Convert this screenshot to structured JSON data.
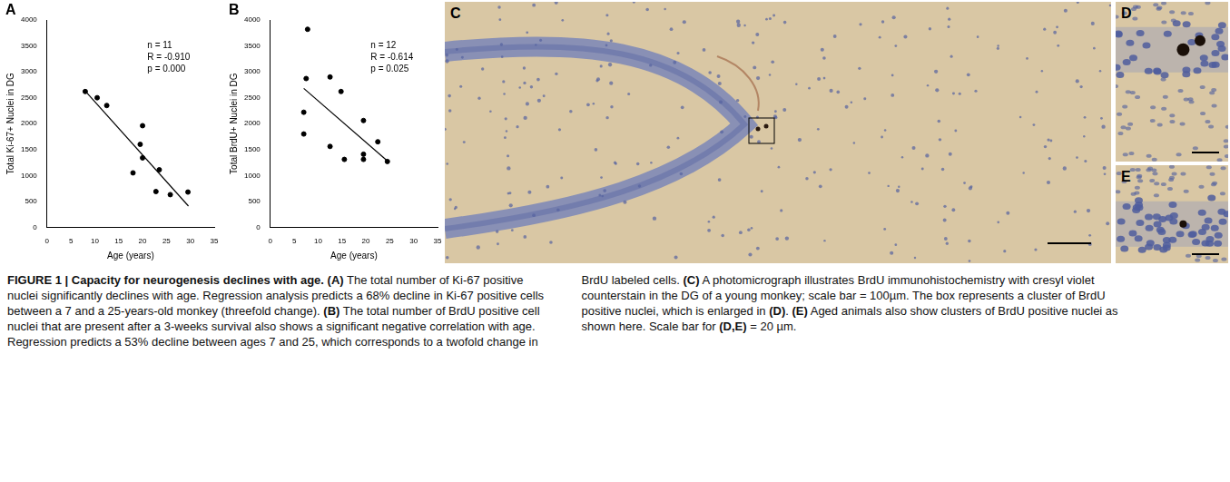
{
  "chart_data": [
    {
      "type": "scatter",
      "panel": "A",
      "marker": "circle",
      "grid": false,
      "x_label": "Age (years)",
      "y_label": "Total Ki-67+ Nuclei in DG",
      "annotations": [
        "n = 11",
        "R = -0.910",
        "p = 0.000"
      ],
      "xlim": [
        0,
        35
      ],
      "xticks": [
        0,
        5,
        10,
        15,
        20,
        25,
        30,
        35
      ],
      "ylim": [
        0,
        4000
      ],
      "yticks": [
        0,
        500,
        1000,
        1500,
        2000,
        2500,
        3000,
        3500,
        4000
      ],
      "points": {
        "x": [
          8,
          10.5,
          12.5,
          18,
          19.5,
          20,
          20,
          22.8,
          23.5,
          25.8,
          29.5
        ],
        "y": [
          2620,
          2500,
          2350,
          1050,
          1600,
          1960,
          1340,
          690,
          1110,
          630,
          680
        ]
      },
      "fit_line": {
        "x": [
          7.8,
          29.6
        ],
        "y": [
          2650,
          410
        ]
      }
    },
    {
      "type": "scatter",
      "panel": "B",
      "marker": "circle",
      "grid": false,
      "x_label": "Age (years)",
      "y_label": "Total BrdU+ Nuclei in DG",
      "annotations": [
        "n = 12",
        "R = -0.614",
        "p = 0.025"
      ],
      "xlim": [
        0,
        35
      ],
      "xticks": [
        0,
        5,
        10,
        15,
        20,
        25,
        30,
        35
      ],
      "ylim": [
        0,
        4000
      ],
      "yticks": [
        0,
        500,
        1000,
        1500,
        2000,
        2500,
        3000,
        3500,
        4000
      ],
      "points": {
        "x": [
          7,
          7,
          7.5,
          7.8,
          12.5,
          12.5,
          14.8,
          15.5,
          19.5,
          19.5,
          19.5,
          22.5,
          24.5
        ],
        "y": [
          2220,
          1800,
          2870,
          3820,
          2900,
          1560,
          2620,
          1310,
          2060,
          1410,
          1310,
          1650,
          1270
        ]
      },
      "fit_line": {
        "x": [
          7,
          24.5
        ],
        "y": [
          2680,
          1280
        ]
      }
    }
  ],
  "images": [
    {
      "panel": "C"
    },
    {
      "panel": "D"
    },
    {
      "panel": "E"
    }
  ],
  "caption": [
    {
      "text": "FIGURE 1 | Capacity for neurogenesis declines with age.",
      "bold": true
    },
    {
      "text": " (A)",
      "bold": true
    },
    {
      "text": " The total number of Ki-67 positive nuclei significantly declines with age. Regression analysis predicts a 68% decline in Ki-67 positive cells between a 7 and a 25-years-old monkey (threefold change).",
      "bold": false
    },
    {
      "text": " (B)",
      "bold": true
    },
    {
      "text": " The total number of BrdU positive cell nuclei that are present after a 3-weeks survival also shows a significant negative correlation with age. Regression predicts a 53% decline between ages 7 and 25, which corresponds to a twofold change in BrdU labeled cells.",
      "bold": false
    },
    {
      "text": " (C)",
      "bold": true
    },
    {
      "text": " A photomicrograph illustrates BrdU immunohistochemistry with cresyl violet counterstain in the DG of a young monkey; scale bar = 100µm. The box represents a cluster of BrdU positive nuclei, which is enlarged in",
      "bold": false
    },
    {
      "text": " (D)",
      "bold": true
    },
    {
      "text": ".",
      "bold": false
    },
    {
      "text": " (E)",
      "bold": true
    },
    {
      "text": " Aged animals also show clusters of BrdU positive nuclei as shown here. Scale bar for",
      "bold": false
    },
    {
      "text": " (D,E)",
      "bold": true
    },
    {
      "text": " = 20 µm.",
      "bold": false
    }
  ]
}
